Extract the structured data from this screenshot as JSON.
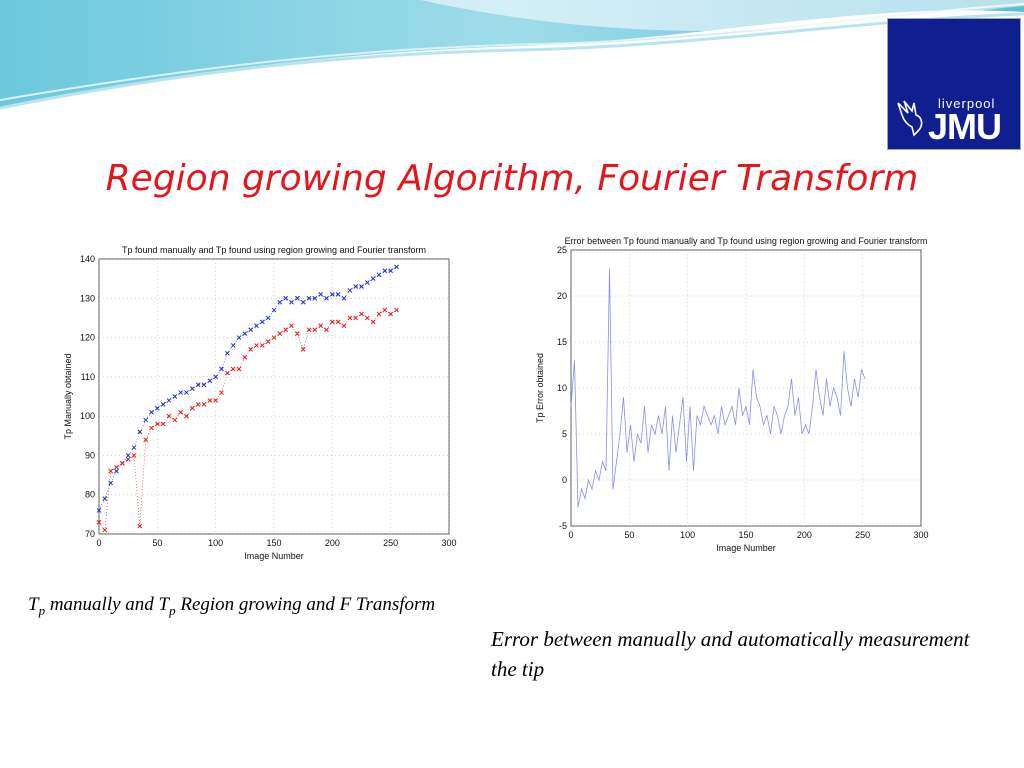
{
  "slide": {
    "title": "Region growing Algorithm, Fourier Transform",
    "logo": {
      "small_text": "liverpool",
      "big_text": "JMU"
    }
  },
  "captions": {
    "left": {
      "t1": "T",
      "sub1": "p",
      "mid": " manually and T",
      "sub2": "p",
      "end": " Region growing and F Transform"
    },
    "right": "Error between manually and automatically measurement the tip"
  },
  "colors": {
    "title": "#e3161c",
    "logo_bg": "#0f1f8f",
    "series_blue": "#1f2fd6",
    "series_red": "#e21b1b",
    "series_error": "#8a8ef0"
  },
  "chart_data": [
    {
      "type": "scatter",
      "title": "Tp found manually and Tp found using region growing and Fourier transform",
      "xlabel": "Image Number",
      "ylabel": "Tp Manually obtained",
      "xlim": [
        0,
        300
      ],
      "ylim": [
        70,
        140
      ],
      "xticks": [
        "0",
        "50",
        "100",
        "150",
        "200",
        "250",
        "300"
      ],
      "yticks": [
        "70",
        "80",
        "90",
        "100",
        "110",
        "120",
        "130",
        "140"
      ],
      "grid": true,
      "series": [
        {
          "name": "",
          "marker": "x",
          "color": "#1f2fd6",
          "x": [
            0,
            5,
            10,
            15,
            20,
            25,
            30,
            35,
            40,
            45,
            50,
            55,
            60,
            65,
            70,
            75,
            80,
            85,
            90,
            95,
            100,
            105,
            110,
            115,
            120,
            125,
            130,
            135,
            140,
            145,
            150,
            155,
            160,
            165,
            170,
            175,
            180,
            185,
            190,
            195,
            200,
            205,
            210,
            215,
            220,
            225,
            230,
            235,
            240,
            245,
            250,
            255
          ],
          "y": [
            76,
            79,
            83,
            86,
            88,
            90,
            92,
            96,
            99,
            101,
            102,
            103,
            104,
            105,
            106,
            106,
            107,
            108,
            108,
            109,
            110,
            112,
            116,
            118,
            120,
            121,
            122,
            123,
            124,
            125,
            127,
            129,
            130,
            129,
            130,
            129,
            130,
            130,
            131,
            130,
            131,
            131,
            130,
            132,
            133,
            133,
            134,
            135,
            136,
            137,
            137,
            138
          ]
        },
        {
          "name": "",
          "marker": "x",
          "color": "#e21b1b",
          "x": [
            0,
            5,
            10,
            15,
            20,
            25,
            30,
            35,
            40,
            45,
            50,
            55,
            60,
            65,
            70,
            75,
            80,
            85,
            90,
            95,
            100,
            105,
            110,
            115,
            120,
            125,
            130,
            135,
            140,
            145,
            150,
            155,
            160,
            165,
            170,
            175,
            180,
            185,
            190,
            195,
            200,
            205,
            210,
            215,
            220,
            225,
            230,
            235,
            240,
            245,
            250,
            255
          ],
          "y": [
            73,
            71,
            86,
            87,
            88,
            89,
            90,
            72,
            94,
            97,
            98,
            98,
            100,
            99,
            101,
            100,
            102,
            103,
            103,
            104,
            104,
            106,
            111,
            112,
            112,
            115,
            117,
            118,
            118,
            119,
            120,
            121,
            122,
            123,
            121,
            117,
            122,
            122,
            123,
            122,
            124,
            124,
            123,
            125,
            125,
            126,
            125,
            124,
            126,
            127,
            126,
            127
          ]
        }
      ]
    },
    {
      "type": "line",
      "title": "Error between Tp found manually and Tp found using region growing and Fourier transform",
      "xlabel": "Image Number",
      "ylabel": "Tp Error obtained",
      "xlim": [
        0,
        300
      ],
      "ylim": [
        -5,
        25
      ],
      "xticks": [
        "0",
        "50",
        "100",
        "150",
        "200",
        "250",
        "300"
      ],
      "yticks": [
        "-5",
        "0",
        "5",
        "10",
        "15",
        "20",
        "25"
      ],
      "grid": true,
      "series": [
        {
          "name": "",
          "color": "#8a8ef0",
          "x": [
            0,
            3,
            6,
            9,
            12,
            15,
            18,
            21,
            24,
            27,
            30,
            33,
            36,
            39,
            42,
            45,
            48,
            51,
            54,
            57,
            60,
            63,
            66,
            69,
            72,
            75,
            78,
            81,
            84,
            87,
            90,
            93,
            96,
            99,
            102,
            105,
            108,
            111,
            114,
            117,
            120,
            123,
            126,
            129,
            132,
            135,
            138,
            141,
            144,
            147,
            150,
            153,
            156,
            159,
            162,
            165,
            168,
            171,
            174,
            177,
            180,
            183,
            186,
            189,
            192,
            195,
            198,
            201,
            204,
            207,
            210,
            213,
            216,
            219,
            222,
            225,
            228,
            231,
            234,
            237,
            240,
            243,
            246,
            249,
            252
          ],
          "y": [
            8,
            13,
            -3,
            -1,
            -2,
            0,
            -1,
            1,
            0,
            2,
            1,
            23,
            -1,
            2,
            5,
            9,
            3,
            6,
            2,
            5,
            4,
            8,
            3,
            6,
            5,
            7,
            5,
            8,
            1,
            7,
            3,
            6,
            9,
            2,
            8,
            1,
            7,
            6,
            8,
            7,
            6,
            7,
            5,
            8,
            6,
            7,
            8,
            6,
            10,
            7,
            8,
            6,
            12,
            9,
            8,
            6,
            7,
            5,
            8,
            7,
            5,
            7,
            8,
            11,
            7,
            9,
            5,
            6,
            5,
            8,
            12,
            9,
            7,
            11,
            8,
            10,
            9,
            7,
            14,
            10,
            8,
            11,
            9,
            12,
            11
          ]
        }
      ]
    }
  ]
}
